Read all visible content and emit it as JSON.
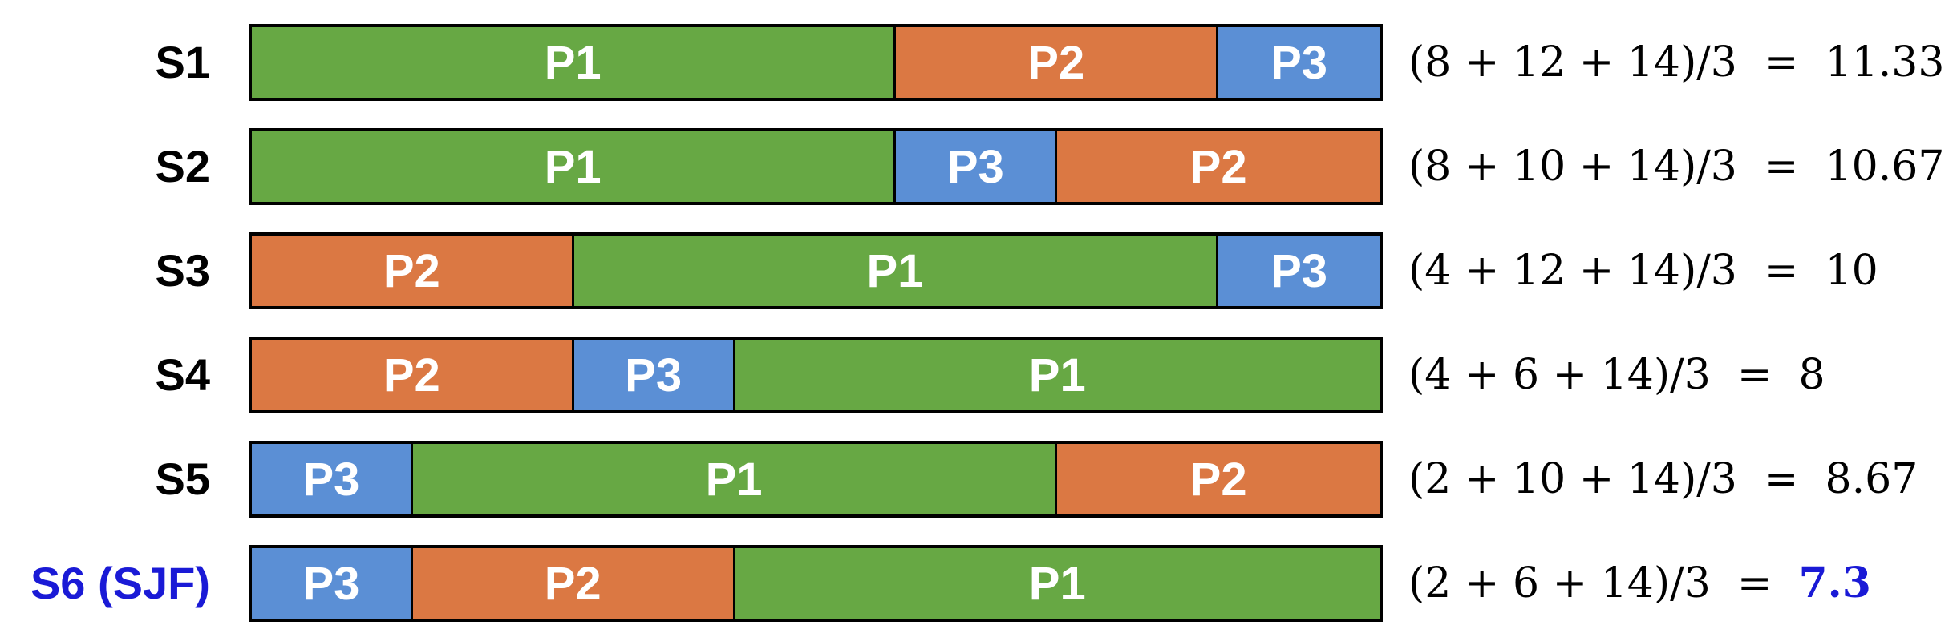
{
  "colors": {
    "P1": "#67a844",
    "P2": "#db7843",
    "P3": "#5b8fd5",
    "highlight": "#1a1ad6"
  },
  "rows": [
    {
      "label": "S1",
      "highlight": false,
      "segments": [
        {
          "process": "P1",
          "duration": 8
        },
        {
          "process": "P2",
          "duration": 4
        },
        {
          "process": "P3",
          "duration": 2
        }
      ],
      "expression": "(8 + 12 + 14)/3  =",
      "result": "11.33"
    },
    {
      "label": "S2",
      "highlight": false,
      "segments": [
        {
          "process": "P1",
          "duration": 8
        },
        {
          "process": "P3",
          "duration": 2
        },
        {
          "process": "P2",
          "duration": 4
        }
      ],
      "expression": "(8 + 10 + 14)/3  =",
      "result": "10.67"
    },
    {
      "label": "S3",
      "highlight": false,
      "segments": [
        {
          "process": "P2",
          "duration": 4
        },
        {
          "process": "P1",
          "duration": 8
        },
        {
          "process": "P3",
          "duration": 2
        }
      ],
      "expression": "(4 + 12 + 14)/3  =",
      "result": "10"
    },
    {
      "label": "S4",
      "highlight": false,
      "segments": [
        {
          "process": "P2",
          "duration": 4
        },
        {
          "process": "P3",
          "duration": 2
        },
        {
          "process": "P1",
          "duration": 8
        }
      ],
      "expression": "(4 + 6 + 14)/3  =",
      "result": "8"
    },
    {
      "label": "S5",
      "highlight": false,
      "segments": [
        {
          "process": "P3",
          "duration": 2
        },
        {
          "process": "P1",
          "duration": 8
        },
        {
          "process": "P2",
          "duration": 4
        }
      ],
      "expression": "(2 + 10 + 14)/3  =",
      "result": "8.67"
    },
    {
      "label": "S6 (SJF)",
      "highlight": true,
      "segments": [
        {
          "process": "P3",
          "duration": 2
        },
        {
          "process": "P2",
          "duration": 4
        },
        {
          "process": "P1",
          "duration": 8
        }
      ],
      "expression": "(2 + 6 + 14)/3  =",
      "result": "7.3"
    }
  ]
}
